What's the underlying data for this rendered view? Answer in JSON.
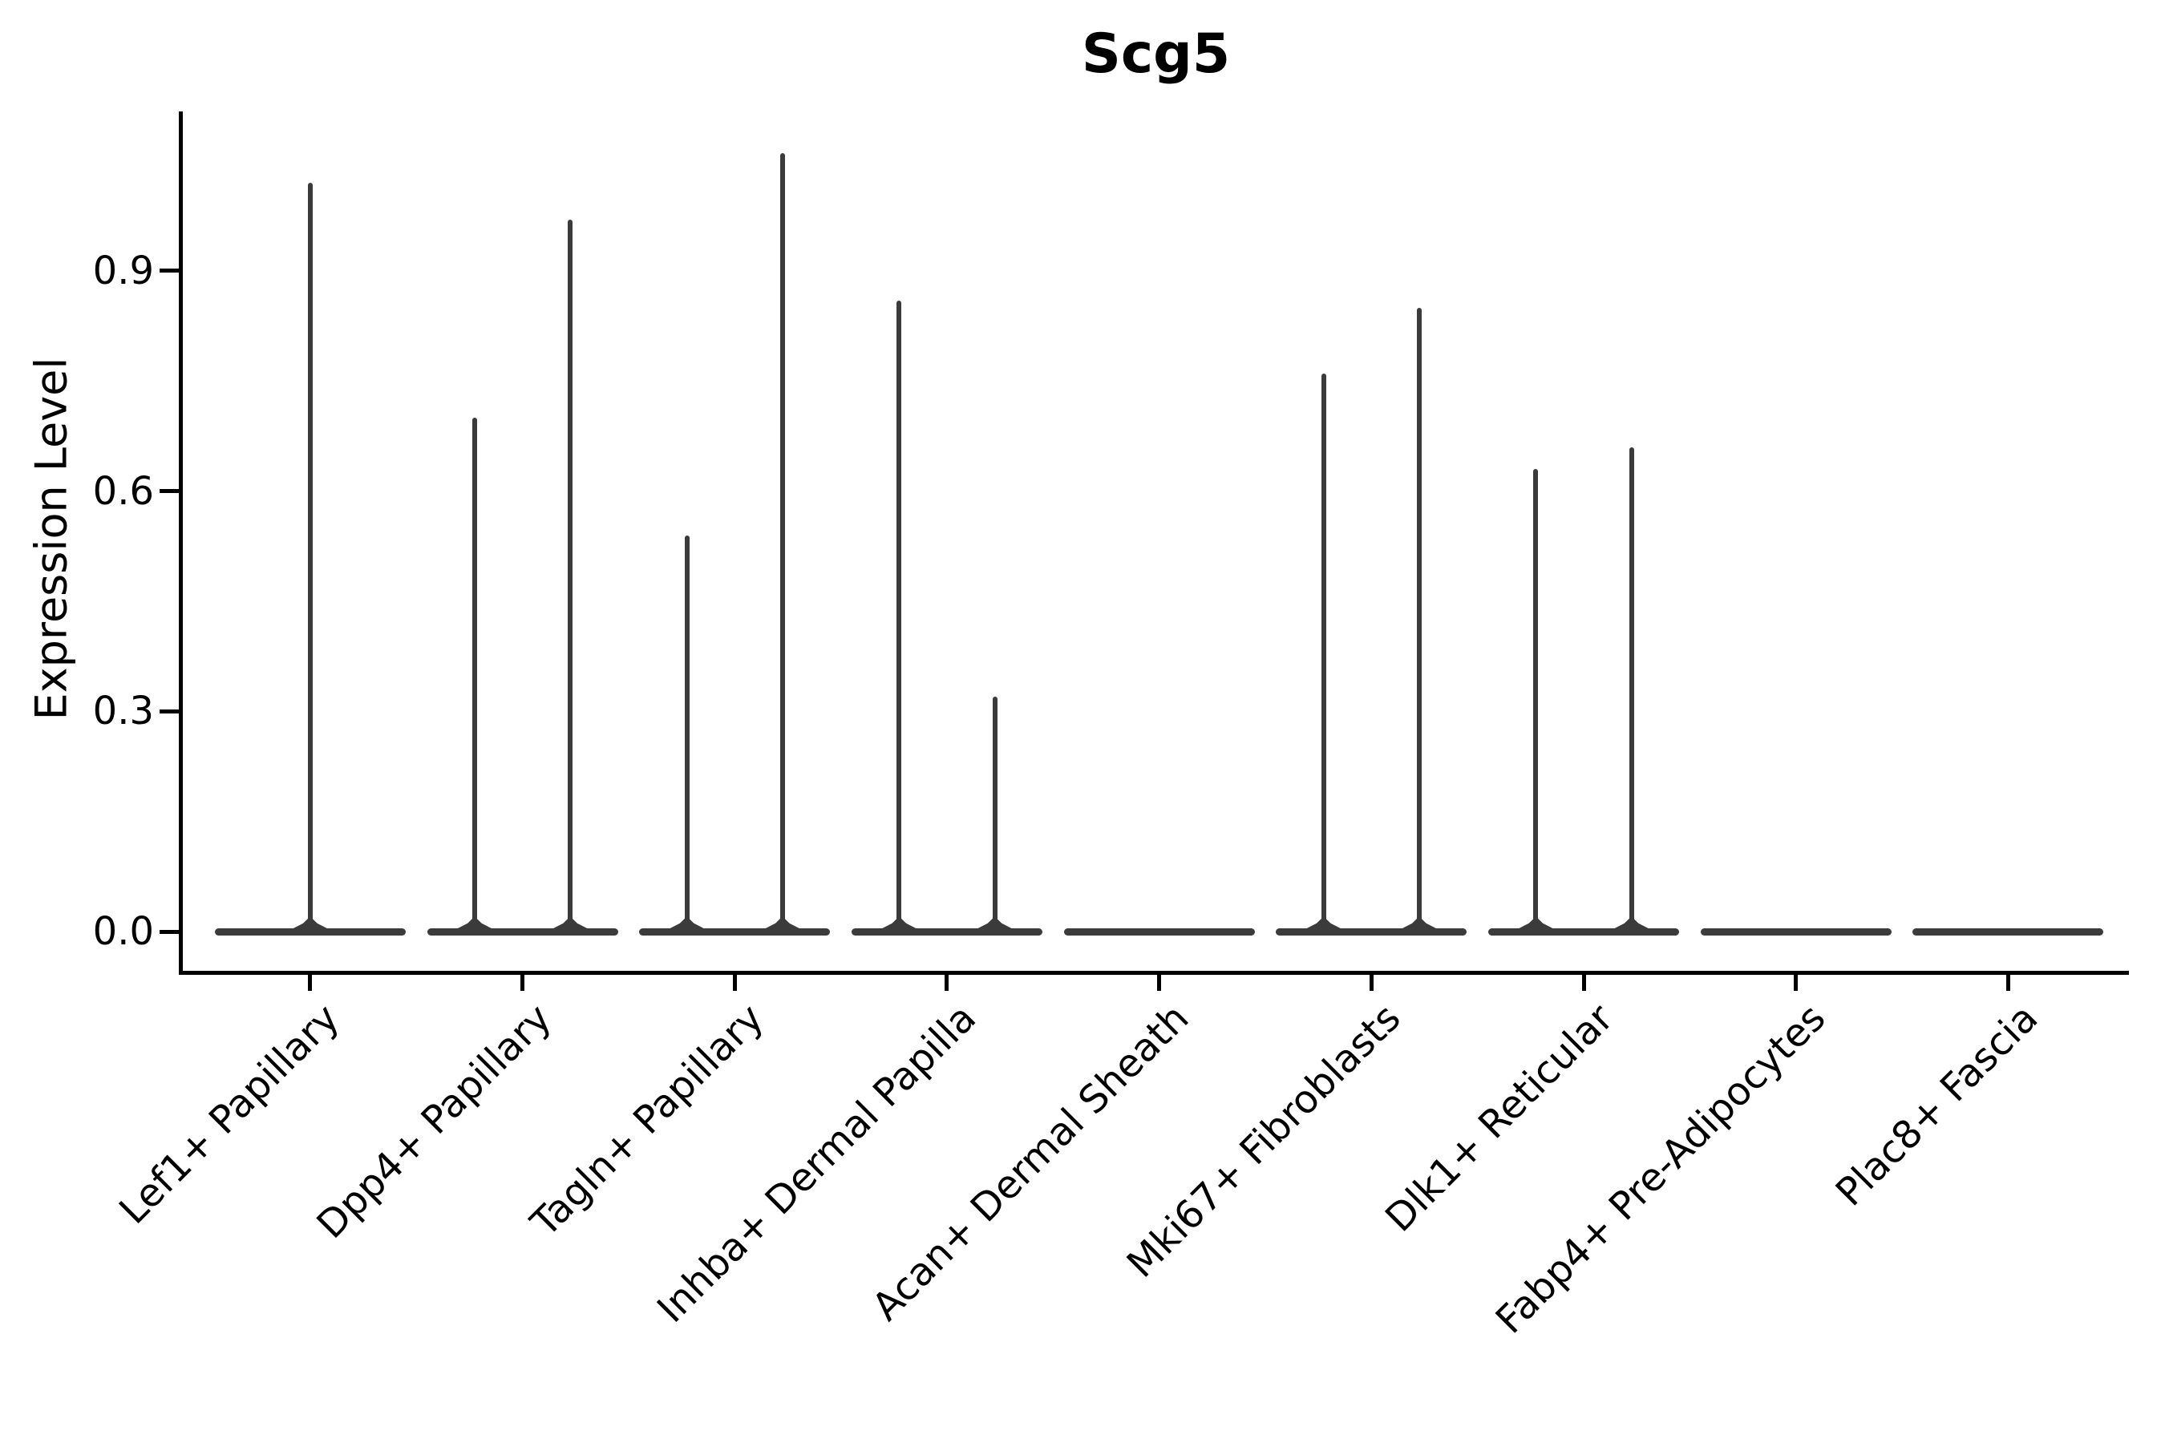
{
  "figure": {
    "title": "Scg5",
    "ylabel": "Expression Level",
    "background": "#ffffff"
  },
  "chart_data": {
    "type": "violin",
    "title": "Scg5",
    "xlabel": "",
    "ylabel": "Expression Level",
    "ytick_labels": [
      "0.0",
      "0.3",
      "0.6",
      "0.9"
    ],
    "ytick_values": [
      0.0,
      0.3,
      0.6,
      0.9
    ],
    "ylim": [
      -0.05,
      1.12
    ],
    "grid": false,
    "legend": false,
    "categories": [
      "Lef1+ Papillary",
      "Dpp4+ Papillary",
      "Tagln+ Papillary",
      "Inhba+ Dermal Papilla",
      "Acan+ Dermal Sheath",
      "Mki67+ Fibroblasts",
      "Dlk1+ Reticular",
      "Fabp4+ Pre-Adipocytes",
      "Plac8+ Fascia"
    ],
    "description": "Flattened violins: bulk of cells at expression 0 (wide flat base), thin density spikes rising to the maximum expression per group",
    "violins": [
      {
        "category": "Lef1+ Papillary",
        "baseline_value": 0,
        "spikes": [
          {
            "pos": "center",
            "max": 1.02
          }
        ]
      },
      {
        "category": "Dpp4+ Papillary",
        "baseline_value": 0,
        "spikes": [
          {
            "pos": "left",
            "max": 0.7
          },
          {
            "pos": "right",
            "max": 0.97
          }
        ]
      },
      {
        "category": "Tagln+ Papillary",
        "baseline_value": 0,
        "spikes": [
          {
            "pos": "left",
            "max": 0.54
          },
          {
            "pos": "right",
            "max": 1.06
          }
        ]
      },
      {
        "category": "Inhba+ Dermal Papilla",
        "baseline_value": 0,
        "spikes": [
          {
            "pos": "left",
            "max": 0.86
          },
          {
            "pos": "right",
            "max": 0.32
          }
        ]
      },
      {
        "category": "Acan+ Dermal Sheath",
        "baseline_value": 0,
        "spikes": []
      },
      {
        "category": "Mki67+ Fibroblasts",
        "baseline_value": 0,
        "spikes": [
          {
            "pos": "left",
            "max": 0.76
          },
          {
            "pos": "right",
            "max": 0.85
          }
        ]
      },
      {
        "category": "Dlk1+ Reticular",
        "baseline_value": 0,
        "spikes": [
          {
            "pos": "left",
            "max": 0.63
          },
          {
            "pos": "right",
            "max": 0.66
          }
        ]
      },
      {
        "category": "Fabp4+ Pre-Adipocytes",
        "baseline_value": 0,
        "spikes": []
      },
      {
        "category": "Plac8+ Fascia",
        "baseline_value": 0,
        "spikes": []
      }
    ],
    "colors": {
      "violin_line": "#3b3b3b",
      "axis": "#000000",
      "text": "#000000",
      "background": "#ffffff"
    }
  }
}
